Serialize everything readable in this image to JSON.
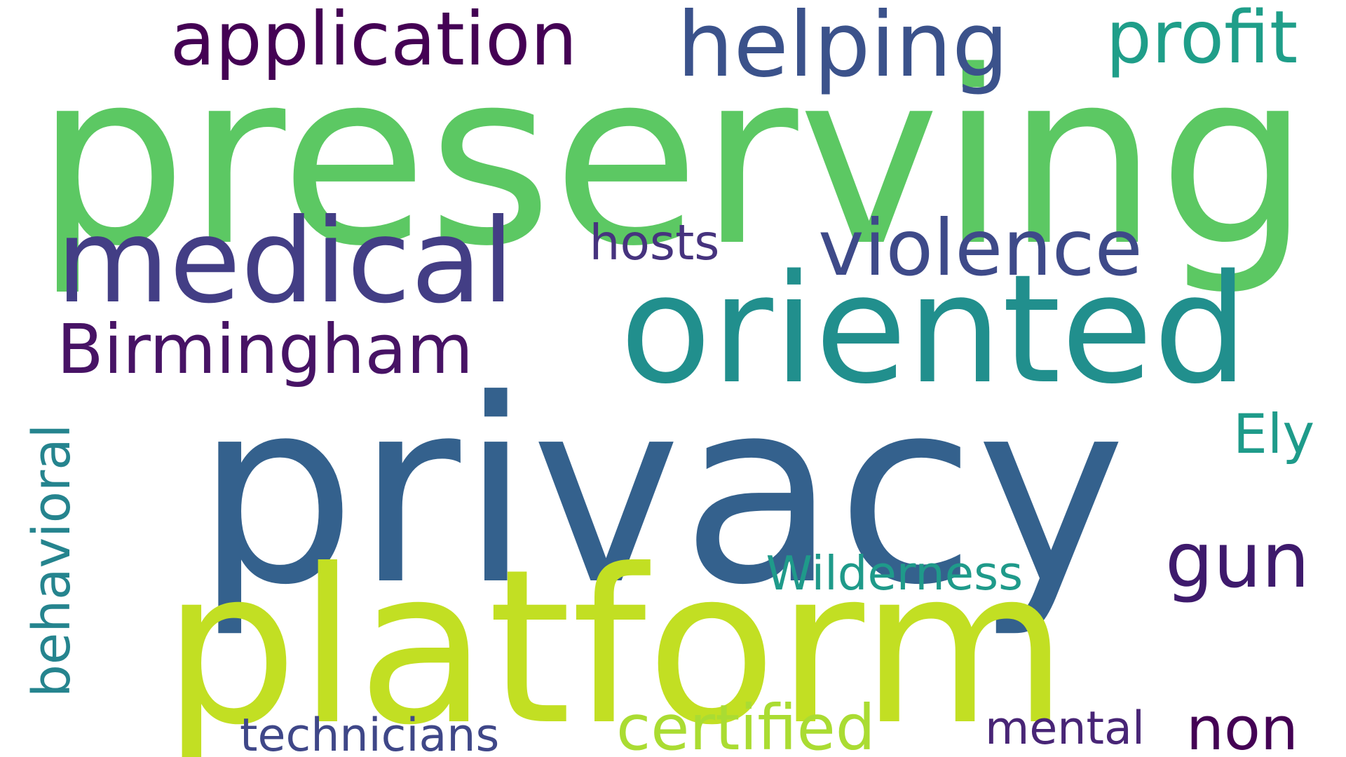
{
  "words": [
    {
      "text": "privacy",
      "color": "#34618D"
    },
    {
      "text": "preserving",
      "color": "#5CC863"
    },
    {
      "text": "platform",
      "color": "#C2DF23"
    },
    {
      "text": "oriented",
      "color": "#218F8D"
    },
    {
      "text": "medical",
      "color": "#433E85"
    },
    {
      "text": "application",
      "color": "#440154"
    },
    {
      "text": "helping",
      "color": "#3B528B"
    },
    {
      "text": "profit",
      "color": "#1F9E89"
    },
    {
      "text": "violence",
      "color": "#3E4A89"
    },
    {
      "text": "Birmingham",
      "color": "#471365"
    },
    {
      "text": "certified",
      "color": "#AADC32"
    },
    {
      "text": "gun",
      "color": "#3E1A6C"
    },
    {
      "text": "non",
      "color": "#440154"
    },
    {
      "text": "hosts",
      "color": "#46337E"
    },
    {
      "text": "behavioral",
      "color": "#25848E"
    },
    {
      "text": "Wilderness",
      "color": "#1F9A8A"
    },
    {
      "text": "Ely",
      "color": "#1E9B8A"
    },
    {
      "text": "technicians",
      "color": "#3F4788"
    },
    {
      "text": "mental",
      "color": "#482576"
    }
  ]
}
